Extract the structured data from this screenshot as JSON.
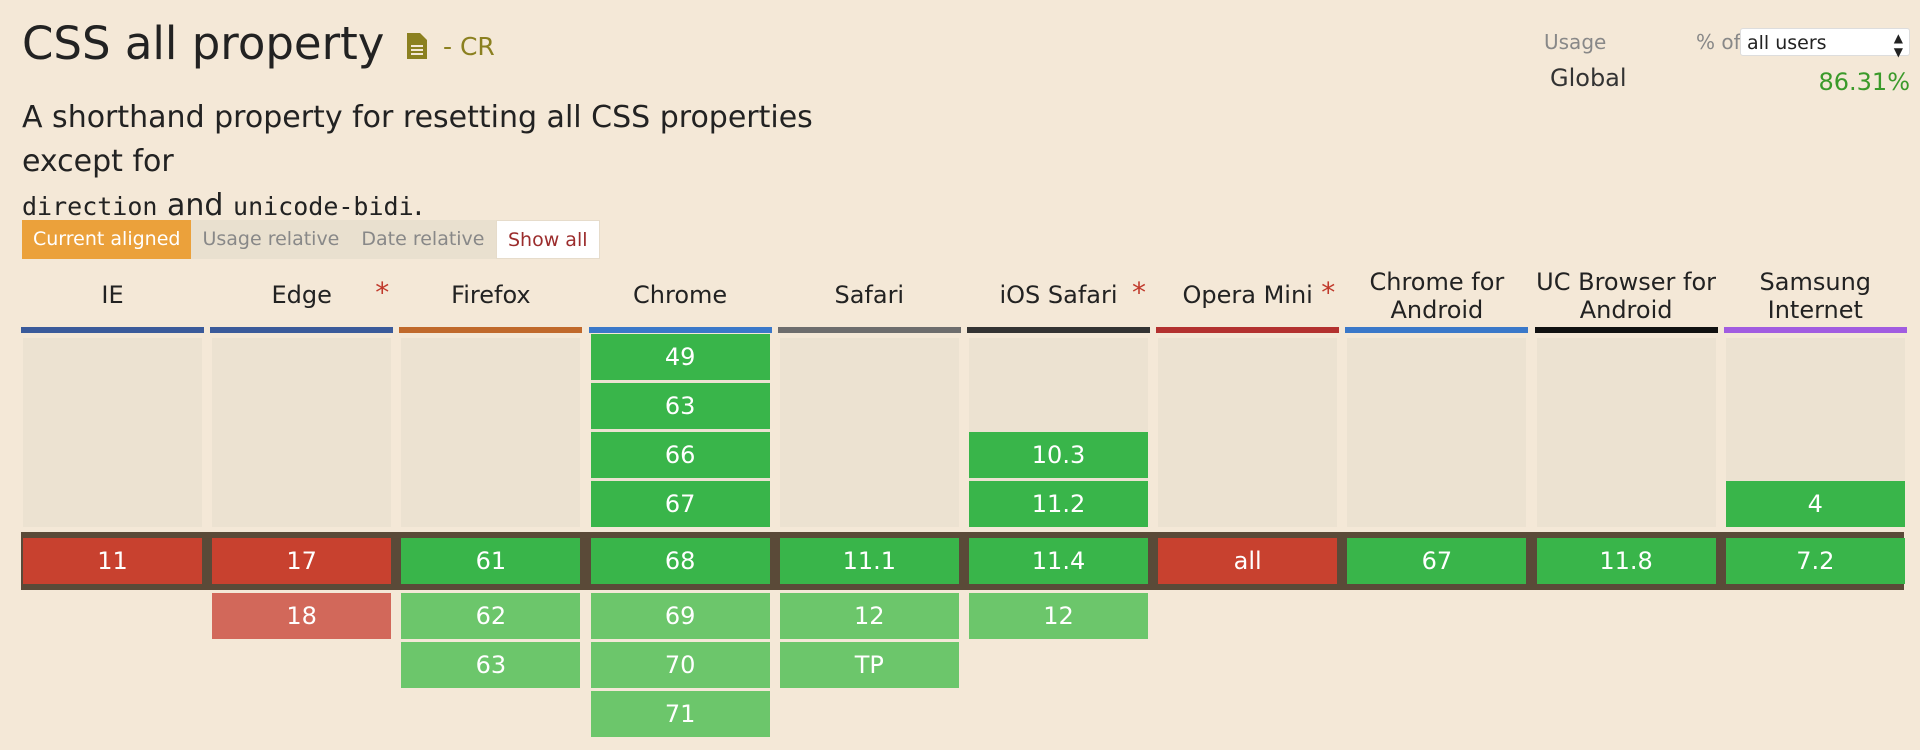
{
  "page": {
    "title": "CSS all property",
    "status": "- CR",
    "description_parts": [
      "A shorthand property for resetting all CSS properties except for",
      "direction",
      "and",
      "unicode-bidi",
      "."
    ]
  },
  "usage": {
    "label": "Usage",
    "pct_of": "% of",
    "users_select": "all users",
    "global_label": "Global",
    "global_value": "86.31%"
  },
  "view_buttons": [
    "Current aligned",
    "Usage relative",
    "Date relative"
  ],
  "show_all": "Show all",
  "browsers": [
    {
      "name": "IE",
      "star": false,
      "color": "#3a5a9a",
      "past": [],
      "current": "11",
      "current_status": "n",
      "future": []
    },
    {
      "name": "Edge",
      "star": true,
      "color": "#3a5a9a",
      "past": [],
      "current": "17",
      "current_status": "n",
      "future": [
        {
          "v": "18",
          "s": "n"
        }
      ]
    },
    {
      "name": "Firefox",
      "star": false,
      "color": "#c0692b",
      "past": [],
      "current": "61",
      "current_status": "y",
      "future": [
        {
          "v": "62",
          "s": "y"
        },
        {
          "v": "63",
          "s": "y"
        }
      ]
    },
    {
      "name": "Chrome",
      "star": false,
      "color": "#3a78c9",
      "past": [
        "49",
        "63",
        "66",
        "67"
      ],
      "current": "68",
      "current_status": "y",
      "future": [
        {
          "v": "69",
          "s": "y"
        },
        {
          "v": "70",
          "s": "y"
        },
        {
          "v": "71",
          "s": "y"
        }
      ]
    },
    {
      "name": "Safari",
      "star": false,
      "color": "#6d6d6d",
      "past": [],
      "current": "11.1",
      "current_status": "y",
      "future": [
        {
          "v": "12",
          "s": "y"
        },
        {
          "v": "TP",
          "s": "y"
        }
      ]
    },
    {
      "name": "iOS Safari",
      "star": true,
      "color": "#333333",
      "past": [
        "10.3",
        "11.2"
      ],
      "current": "11.4",
      "current_status": "y",
      "future": [
        {
          "v": "12",
          "s": "y"
        }
      ]
    },
    {
      "name": "Opera Mini",
      "star": true,
      "color": "#b3312f",
      "past": [],
      "current": "all",
      "current_status": "n",
      "future": []
    },
    {
      "name": "Chrome for Android",
      "star": false,
      "color": "#3a78c9",
      "past": [],
      "current": "67",
      "current_status": "y",
      "future": []
    },
    {
      "name": "UC Browser for Android",
      "star": false,
      "color": "#111111",
      "past": [],
      "current": "11.8",
      "current_status": "y",
      "future": []
    },
    {
      "name": "Samsung Internet",
      "star": false,
      "color": "#a15ce0",
      "past": [
        "4"
      ],
      "current": "7.2",
      "current_status": "y",
      "future": []
    }
  ],
  "colors": {
    "supported": "#39b54a",
    "supported_future": "#6cc66b",
    "unsupported": "#c8412f",
    "unsupported_future": "#d2685a",
    "accent": "#eba13b",
    "background": "#f4e8d7"
  }
}
